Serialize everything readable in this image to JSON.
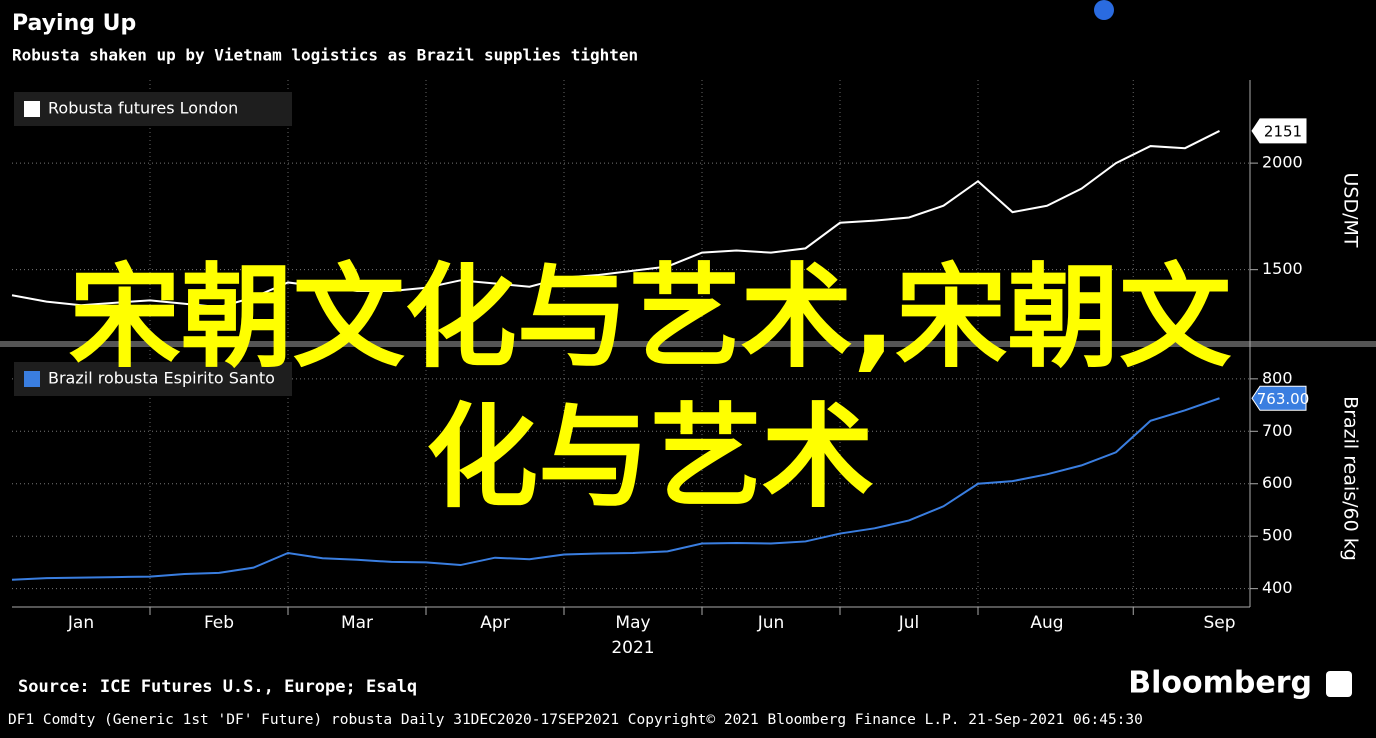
{
  "header": {
    "title": "Paying Up",
    "subtitle": "Robusta shaken up by Vietnam logistics as Brazil supplies tighten"
  },
  "chart_data": [
    {
      "type": "line",
      "ylabel": "USD/MT",
      "ylim": [
        1170,
        2390
      ],
      "yticks": [
        1500,
        2000
      ],
      "grid": true,
      "legend": "top-left",
      "series": [
        {
          "name": "Robusta futures London",
          "color": "#ffffff",
          "values": [
            1380,
            1350,
            1333,
            1345,
            1356,
            1340,
            1324,
            1370,
            1440,
            1420,
            1400,
            1400,
            1415,
            1450,
            1435,
            1420,
            1463,
            1475,
            1495,
            1515,
            1580,
            1590,
            1580,
            1600,
            1720,
            1730,
            1745,
            1800,
            1915,
            1770,
            1800,
            1880,
            2000,
            2080,
            2070,
            2151
          ],
          "value_labels": [
            null,
            null,
            null,
            null,
            null,
            null,
            null,
            null,
            null,
            null,
            null,
            null,
            null,
            null,
            null,
            null,
            null,
            null,
            null,
            null,
            null,
            null,
            null,
            null,
            null,
            null,
            null,
            null,
            null,
            null,
            null,
            null,
            null,
            null,
            null,
            "2151"
          ]
        }
      ]
    },
    {
      "type": "line",
      "ylabel": "Brazil reais/60 kg",
      "ylim": [
        365,
        855
      ],
      "yticks": [
        400,
        500,
        600,
        700,
        800
      ],
      "grid": true,
      "legend": "top-left",
      "categories": [
        null,
        null,
        "Jan",
        null,
        null,
        null,
        "Feb",
        null,
        null,
        null,
        "Mar",
        null,
        null,
        null,
        "Apr",
        null,
        null,
        null,
        "May",
        null,
        null,
        null,
        "Jun",
        null,
        null,
        null,
        "Jul",
        null,
        null,
        null,
        "Aug",
        null,
        null,
        null,
        null,
        "Sep"
      ],
      "xlabel": "2021",
      "series": [
        {
          "name": "Brazil robusta Espirito Santo",
          "color": "#3a7ee0",
          "values": [
            417,
            420,
            421,
            422,
            423,
            428,
            430,
            440,
            468,
            458,
            455,
            451,
            450,
            445,
            459,
            456,
            465,
            467,
            468,
            471,
            486,
            487,
            486,
            490,
            505,
            515,
            530,
            557,
            600,
            605,
            618,
            635,
            660,
            720,
            740,
            763
          ],
          "value_labels": [
            null,
            null,
            null,
            null,
            null,
            null,
            null,
            null,
            null,
            null,
            null,
            null,
            null,
            null,
            null,
            null,
            null,
            null,
            null,
            null,
            null,
            null,
            null,
            null,
            null,
            null,
            null,
            null,
            null,
            null,
            null,
            null,
            null,
            null,
            null,
            "763.00"
          ]
        }
      ]
    }
  ],
  "footer": {
    "source": "Source: ICE Futures U.S., Europe; Esalq",
    "brand": "Bloomberg",
    "note": "DF1 Comdty (Generic 1st 'DF' Future) robusta  Daily 31DEC2020-17SEP2021  Copyright© 2021 Bloomberg Finance L.P.  21-Sep-2021 06:45:30"
  },
  "overlay_text": "宋朝文化与艺术,宋朝文化与艺术"
}
